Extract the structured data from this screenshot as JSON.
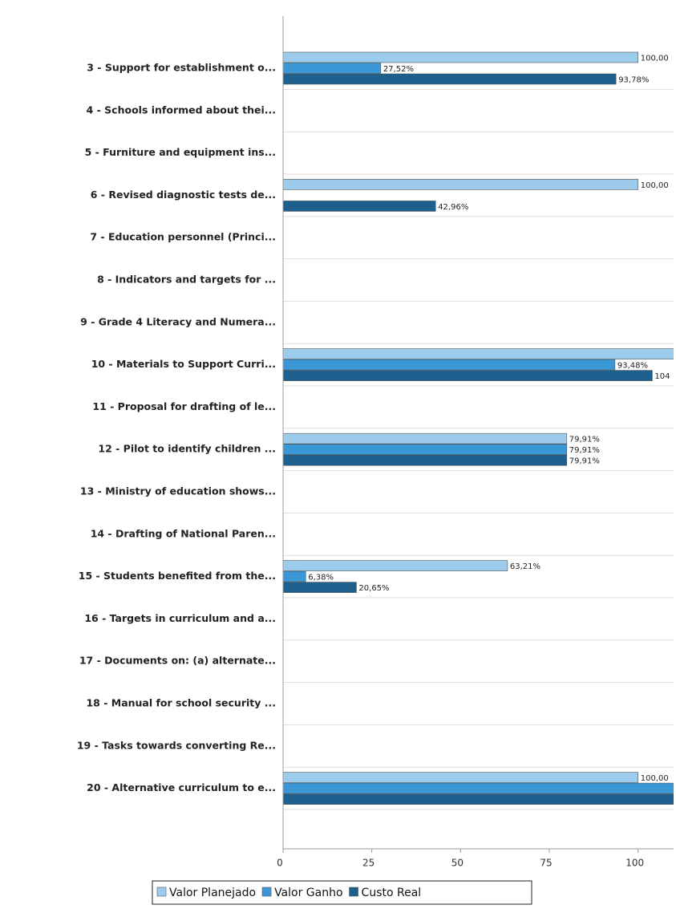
{
  "chart_data": {
    "type": "hbar",
    "categories": [
      "3 - Support for establishment o...",
      "4 - Schools informed about thei...",
      "5 - Furniture and equipment ins...",
      "6 - Revised diagnostic tests de...",
      "7 - Education personnel (Princi...",
      "8 - Indicators and targets for ...",
      "9 - Grade 4 Literacy and Numera...",
      "10 - Materials to  Support Curri...",
      "11 - Proposal for drafting of le...",
      "12 - Pilot to identify children ...",
      "13 - Ministry of education shows...",
      "14 - Drafting of  National Paren...",
      "15 - Students benefited from the...",
      "16 - Targets in curriculum and a...",
      "17 - Documents on: (a) alternate...",
      "18 - Manual for school security ...",
      "19 - Tasks towards converting Re...",
      "20 - Alternative curriculum to e..."
    ],
    "series": [
      {
        "name": "Valor Planejado",
        "color": "#9ccbeb",
        "values": [
          100,
          null,
          null,
          100,
          null,
          null,
          null,
          112,
          null,
          79.91,
          null,
          null,
          63.21,
          null,
          null,
          null,
          null,
          100
        ],
        "value_labels": [
          "100,00",
          null,
          null,
          "100,00",
          null,
          null,
          null,
          null,
          null,
          "79,91%",
          null,
          null,
          "63,21%",
          null,
          null,
          null,
          null,
          "100,00"
        ]
      },
      {
        "name": "Valor Ganho",
        "color": "#3a98d6",
        "values": [
          27.52,
          null,
          null,
          null,
          null,
          null,
          null,
          93.48,
          null,
          79.91,
          null,
          null,
          6.38,
          null,
          null,
          null,
          null,
          112
        ],
        "value_labels": [
          "27,52%",
          null,
          null,
          null,
          null,
          null,
          null,
          "93,48%",
          null,
          "79,91%",
          null,
          null,
          "6,38%",
          null,
          null,
          null,
          null,
          null
        ]
      },
      {
        "name": "Custo Real",
        "color": "#1d5f8d",
        "values": [
          93.78,
          null,
          null,
          42.96,
          null,
          null,
          null,
          104,
          null,
          79.91,
          null,
          null,
          20.65,
          null,
          null,
          null,
          null,
          112
        ],
        "value_labels": [
          "93,78%",
          null,
          null,
          "42,96%",
          null,
          null,
          null,
          "104",
          null,
          "79,91%",
          null,
          null,
          "20,65%",
          null,
          null,
          null,
          null,
          null
        ]
      }
    ],
    "xlim": [
      0,
      110
    ],
    "xticks": [
      0,
      25,
      50,
      75,
      100
    ]
  }
}
